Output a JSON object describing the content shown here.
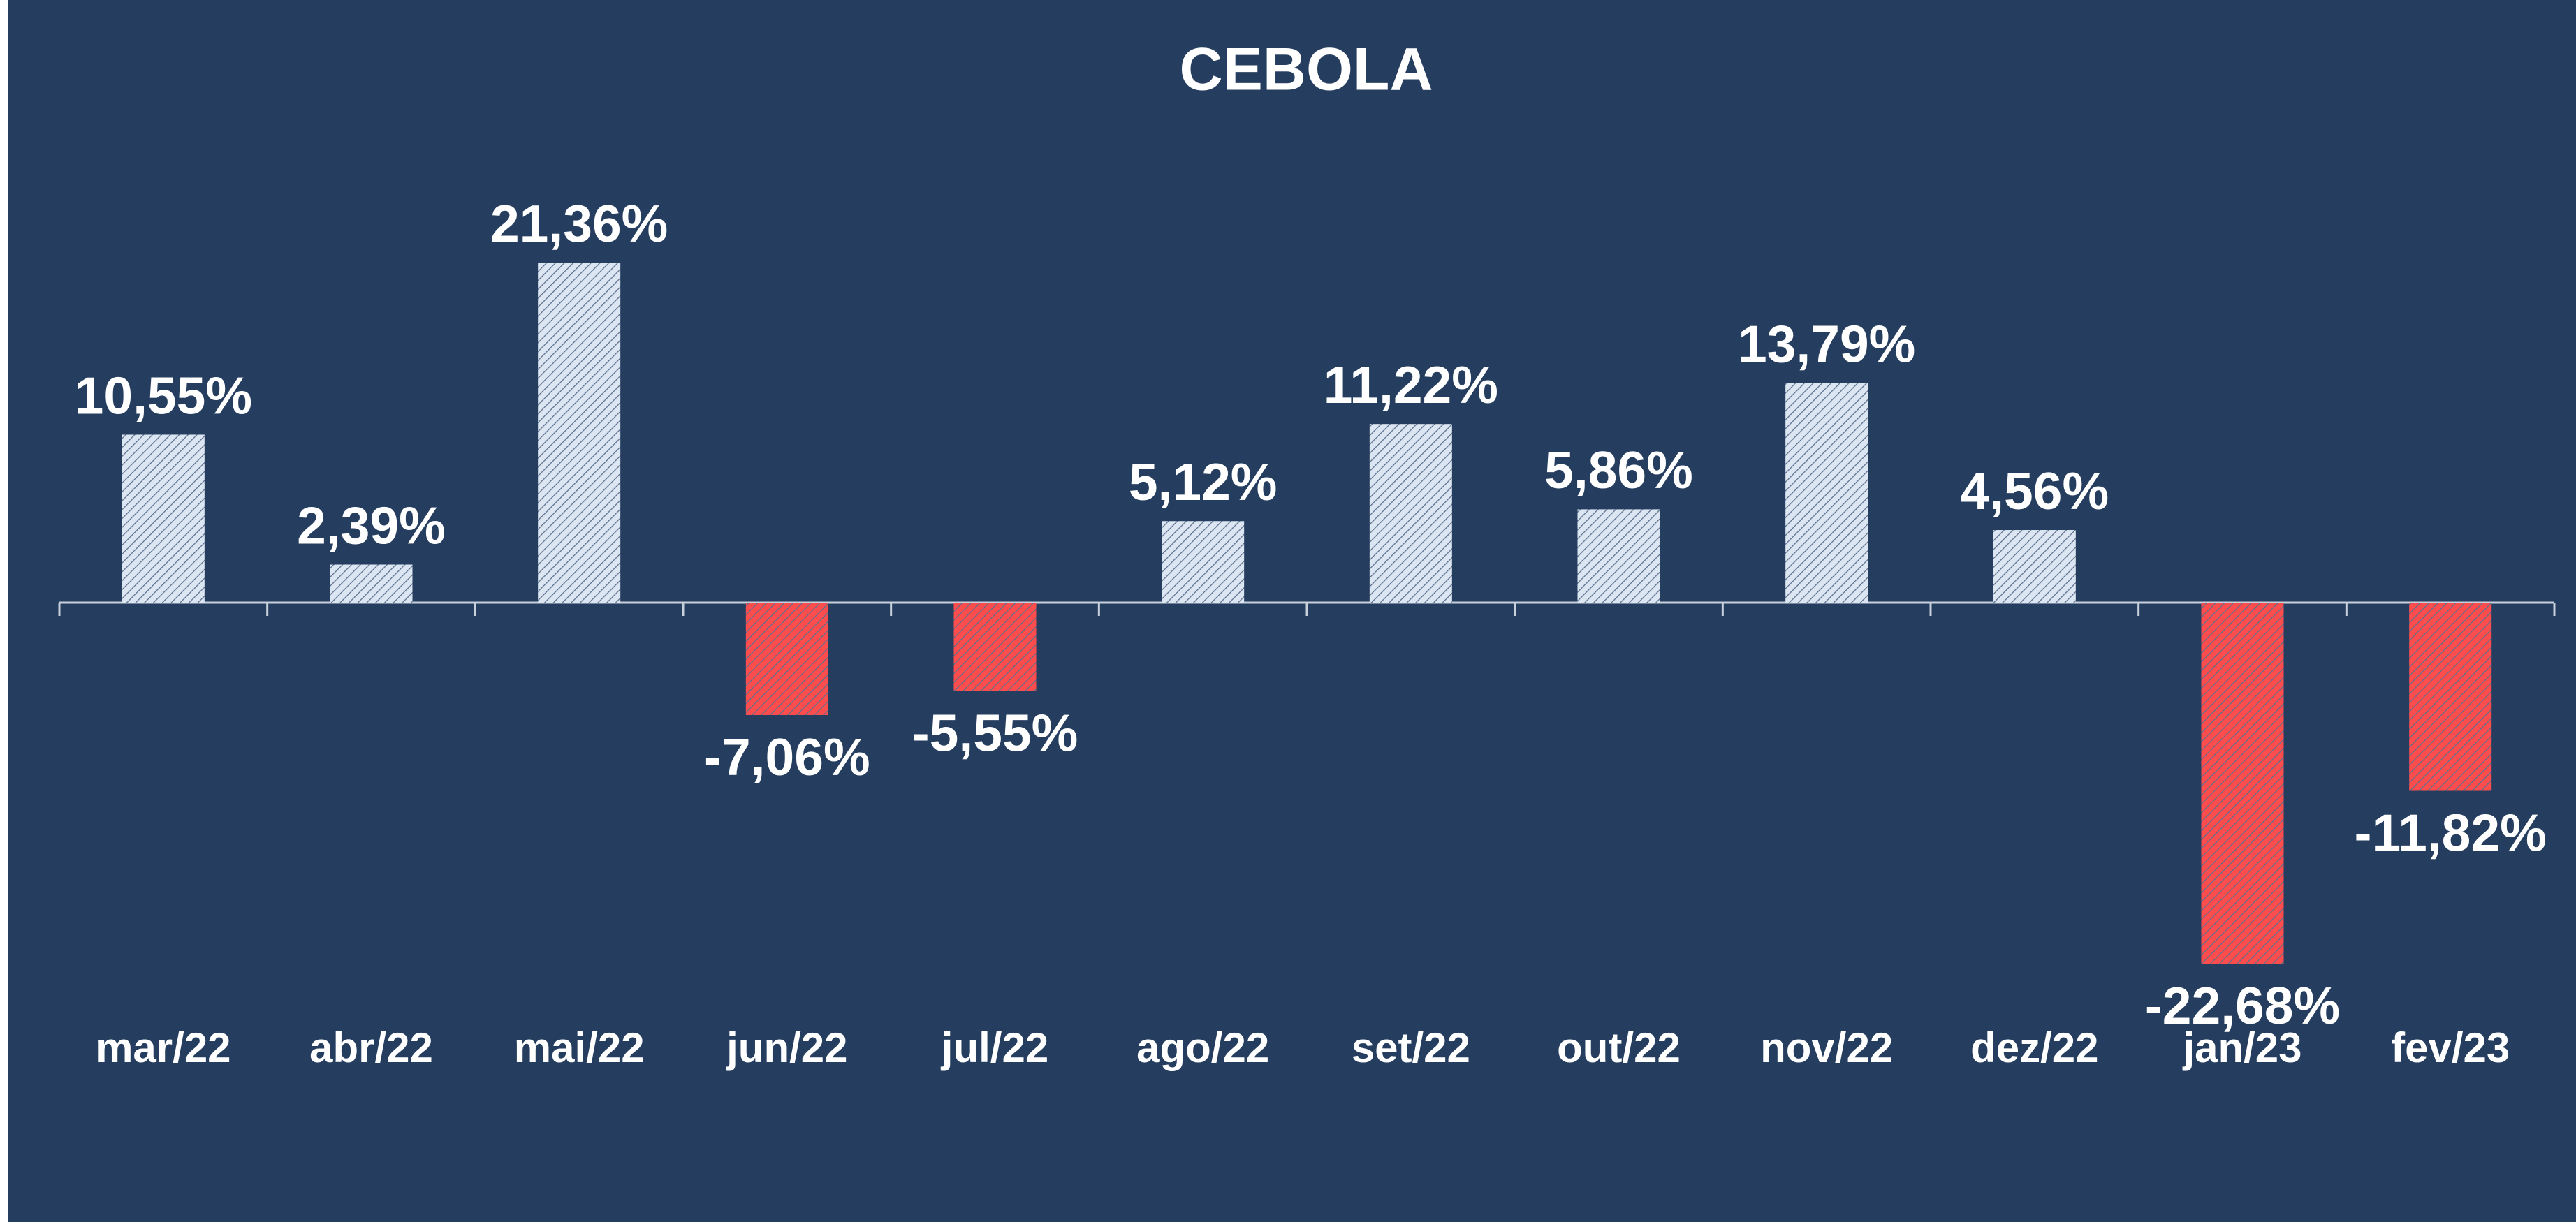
{
  "chart_data": {
    "type": "bar",
    "title": "CEBOLA",
    "categories": [
      "mar/22",
      "abr/22",
      "mai/22",
      "jun/22",
      "jul/22",
      "ago/22",
      "set/22",
      "out/22",
      "nov/22",
      "dez/22",
      "jan/23",
      "fev/23"
    ],
    "values": [
      10.55,
      2.39,
      21.36,
      -7.06,
      -5.55,
      5.12,
      11.22,
      5.86,
      13.79,
      4.56,
      -22.68,
      -11.82
    ],
    "value_labels": [
      "10,55%",
      "2,39%",
      "21,36%",
      "-7,06%",
      "-5,55%",
      "5,12%",
      "11,22%",
      "5,86%",
      "13,79%",
      "4,56%",
      "-22,68%",
      "-11,82%"
    ],
    "color_positive": "#dce6f2",
    "color_negative": "#ff4d4d",
    "background": "#253d5e"
  }
}
